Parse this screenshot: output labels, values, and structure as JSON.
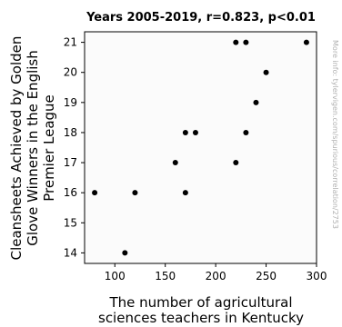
{
  "chart_data": {
    "type": "scatter",
    "title": "Years 2005-2019, r=0.823, p<0.01",
    "xlabel": [
      "The number of agricultural",
      "sciences teachers in Kentucky"
    ],
    "ylabel": [
      "Cleansheets Achieved by Golden",
      "Glove Winners in the English",
      "Premier League"
    ],
    "side_note": "More info: tylervigen.com/spurious/correlation/2753",
    "xlim": [
      70,
      300
    ],
    "ylim": [
      13.65,
      21.35
    ],
    "xticks": [
      100,
      150,
      200,
      250,
      300
    ],
    "yticks": [
      14,
      15,
      16,
      17,
      18,
      19,
      20,
      21
    ],
    "grid": false,
    "points": [
      {
        "x": 80,
        "y": 16
      },
      {
        "x": 110,
        "y": 14
      },
      {
        "x": 120,
        "y": 16
      },
      {
        "x": 160,
        "y": 17
      },
      {
        "x": 170,
        "y": 18
      },
      {
        "x": 170,
        "y": 16
      },
      {
        "x": 180,
        "y": 18
      },
      {
        "x": 220,
        "y": 21
      },
      {
        "x": 220,
        "y": 17
      },
      {
        "x": 230,
        "y": 21
      },
      {
        "x": 230,
        "y": 18
      },
      {
        "x": 240,
        "y": 19
      },
      {
        "x": 250,
        "y": 20
      },
      {
        "x": 290,
        "y": 21
      }
    ]
  }
}
